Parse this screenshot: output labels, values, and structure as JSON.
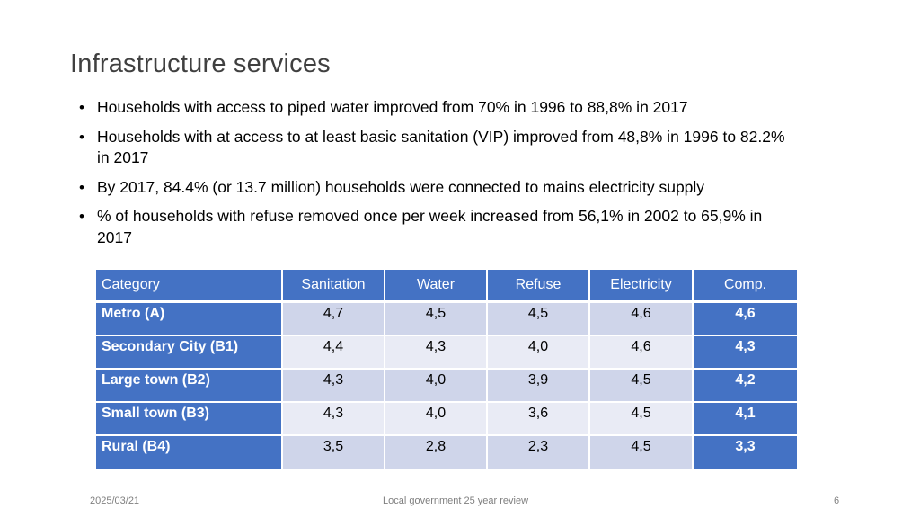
{
  "slide": {
    "title": "Infrastructure services",
    "bullets": [
      "Households with access to piped water improved from 70% in 1996 to 88,8% in 2017",
      "Households with at access to at least basic sanitation (VIP) improved from 48,8% in 1996 to 82.2% in 2017",
      "By 2017, 84.4% (or 13.7 million) households were connected to mains electricity supply",
      "% of households with refuse removed once per week increased from 56,1% in 2002 to 65,9% in 2017"
    ],
    "bullet_glyph": "•"
  },
  "table": {
    "headers": [
      "Category",
      "Sanitation",
      "Water",
      "Refuse",
      "Electricity",
      "Comp."
    ],
    "rows": [
      {
        "category": "Metro (A)",
        "sanitation": "4,7",
        "water": "4,5",
        "refuse": "4,5",
        "electricity": "4,6",
        "comp": "4,6"
      },
      {
        "category": "Secondary City (B1)",
        "sanitation": "4,4",
        "water": "4,3",
        "refuse": "4,0",
        "electricity": "4,6",
        "comp": "4,3"
      },
      {
        "category": "Large town (B2)",
        "sanitation": "4,3",
        "water": "4,0",
        "refuse": "3,9",
        "electricity": "4,5",
        "comp": "4,2"
      },
      {
        "category": "Small town (B3)",
        "sanitation": "4,3",
        "water": "4,0",
        "refuse": "3,6",
        "electricity": "4,5",
        "comp": "4,1"
      },
      {
        "category": "Rural (B4)",
        "sanitation": "3,5",
        "water": "2,8",
        "refuse": "2,3",
        "electricity": "4,5",
        "comp": "3,3"
      }
    ]
  },
  "footer": {
    "date": "2025/03/21",
    "center": "Local government 25 year review",
    "page_number": "6"
  },
  "colors": {
    "header_fill": "#4472c4",
    "band_dark": "#cfd5ea",
    "band_light": "#e9ebf5",
    "title_text": "#404040",
    "footer_text": "#7f7f7f"
  }
}
